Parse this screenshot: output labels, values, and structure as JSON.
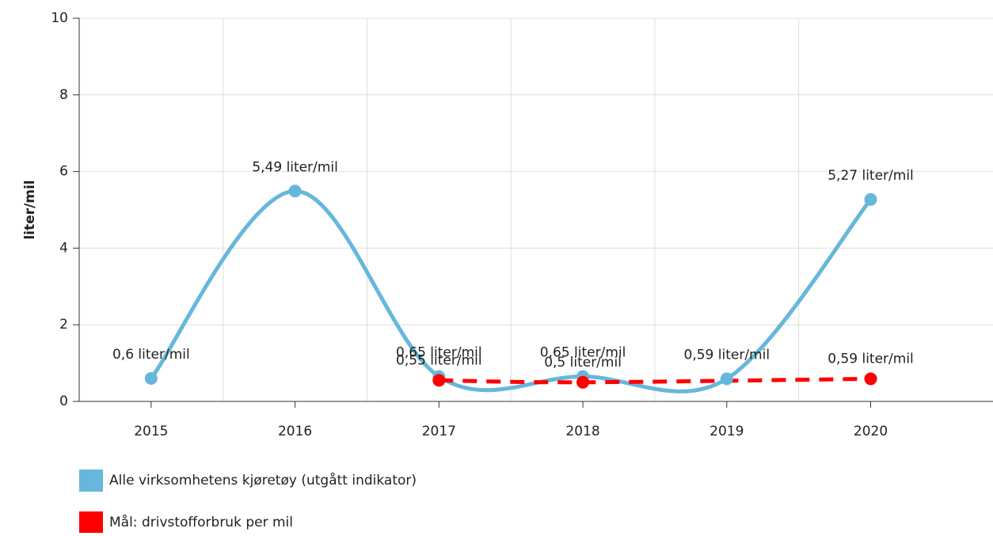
{
  "chart_data": {
    "type": "line",
    "y_label": "liter/mil",
    "x": [
      2015,
      2016,
      2017,
      2018,
      2019,
      2020
    ],
    "xlim": [
      2014.5,
      2020.85
    ],
    "xticks": [
      2015,
      2016,
      2017,
      2018,
      2019,
      2020
    ],
    "ylim": [
      0,
      10
    ],
    "yticks": [
      0,
      2,
      4,
      6,
      8,
      10
    ],
    "grid": true,
    "legend": "bottom-left",
    "series": [
      {
        "name": "Alle virksomhetens kjøretøy (utgått indikator)",
        "color": "#67b7dc",
        "dashed": false,
        "values": [
          0.6,
          5.49,
          0.65,
          0.65,
          0.59,
          5.27
        ],
        "value_labels": [
          "0,6 liter/mil",
          "5,49 liter/mil",
          "0,65 liter/mil",
          "0,65 liter/mil",
          "0,59 liter/mil",
          "5,27 liter/mil"
        ]
      },
      {
        "name": "Mål: drivstofforbruk per mil",
        "color": "#ff0000",
        "dashed": true,
        "x": [
          2017,
          2018,
          2020
        ],
        "values": [
          0.55,
          0.5,
          0.59
        ],
        "value_labels": [
          "0,55 liter/mil",
          "0,5 liter/mil",
          "0,59 liter/mil"
        ]
      }
    ]
  }
}
